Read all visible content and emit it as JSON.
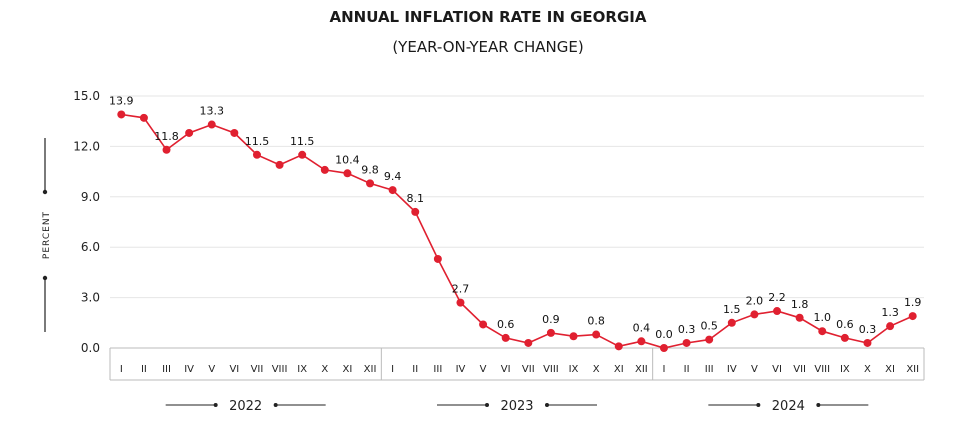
{
  "chart_data": {
    "type": "line",
    "title": "ANNUAL INFLATION RATE IN GEORGIA",
    "subtitle": "(YEAR-ON-YEAR CHANGE)",
    "ylabel": "PERCENT",
    "ylim": [
      0,
      15
    ],
    "yticks": [
      "0.0",
      "3.0",
      "6.0",
      "9.0",
      "12.0",
      "15.0"
    ],
    "grid": true,
    "color": "#e02030",
    "months": [
      "I",
      "II",
      "III",
      "IV",
      "V",
      "VI",
      "VII",
      "VIII",
      "IX",
      "X",
      "XI",
      "XII"
    ],
    "years": [
      "2022",
      "2023",
      "2024"
    ],
    "values": [
      13.9,
      13.7,
      11.8,
      12.8,
      13.3,
      12.8,
      11.5,
      10.9,
      11.5,
      10.6,
      10.4,
      9.8,
      9.4,
      8.1,
      5.3,
      2.7,
      1.4,
      0.6,
      0.3,
      0.9,
      0.7,
      0.8,
      0.1,
      0.4,
      0.0,
      0.3,
      0.5,
      1.5,
      2.0,
      2.2,
      1.8,
      1.0,
      0.6,
      0.3,
      1.3,
      1.9
    ],
    "data_labels": [
      "13.9",
      "",
      "11.8",
      "",
      "13.3",
      "",
      "11.5",
      "",
      "11.5",
      "",
      "10.4",
      "9.8",
      "9.4",
      "8.1",
      "",
      "2.7",
      "",
      "0.6",
      "",
      "0.9",
      "",
      "0.8",
      "",
      "0.4",
      "0.0",
      "0.3",
      "0.5",
      "1.5",
      "2.0",
      "2.2",
      "1.8",
      "1.0",
      "0.6",
      "0.3",
      "1.3",
      "1.9"
    ]
  }
}
